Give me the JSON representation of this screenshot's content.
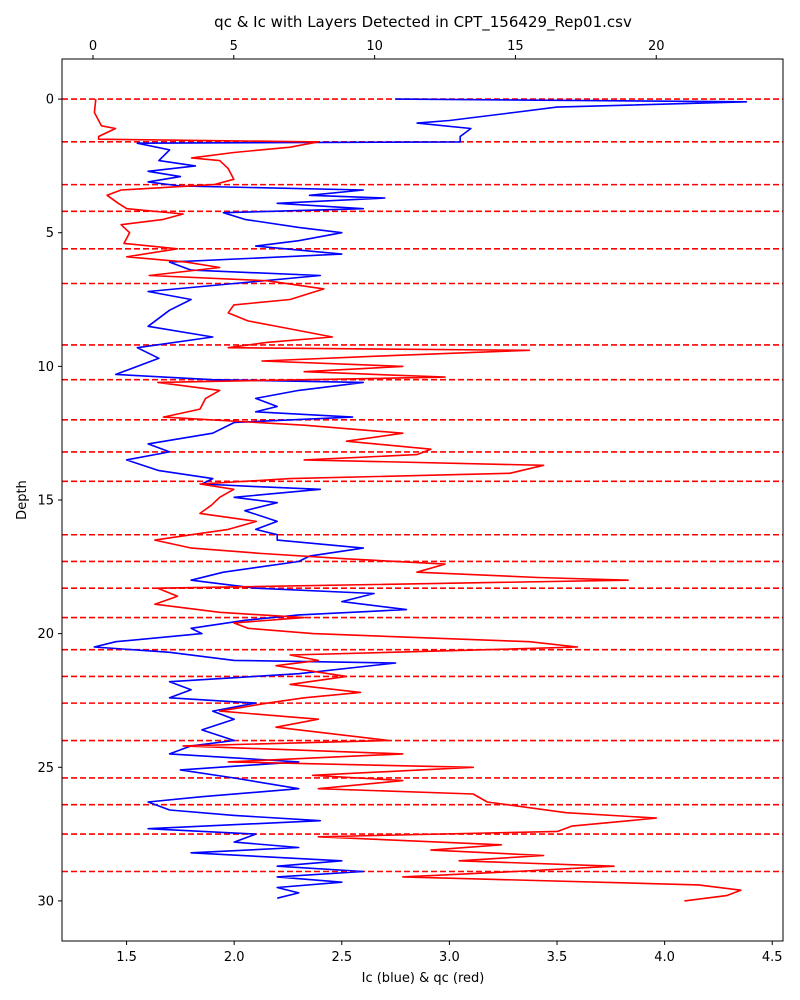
{
  "chart_data": {
    "type": "line",
    "title": "qc & Ic with Layers Detected in CPT_156429_Rep01.csv",
    "xlabel": "Ic (blue) & qc (red)",
    "ylabel": "Depth",
    "x_bottom_ticks": [
      "1.5",
      "2.0",
      "2.5",
      "3.0",
      "3.5",
      "4.0",
      "4.5"
    ],
    "x_top_ticks": [
      "0",
      "5",
      "10",
      "15",
      "20"
    ],
    "y_ticks": [
      "0",
      "5",
      "10",
      "15",
      "20",
      "25",
      "30"
    ],
    "xlim_bottom": [
      1.2,
      4.55
    ],
    "xlim_top": [
      -1.1,
      24.5
    ],
    "ylim": [
      31.5,
      -1.5
    ],
    "y_inverted": true,
    "grid": false,
    "layer_boundaries": [
      0.0,
      1.6,
      3.2,
      4.2,
      5.6,
      6.9,
      9.2,
      10.5,
      12.0,
      13.2,
      14.3,
      16.3,
      17.3,
      18.3,
      19.4,
      20.6,
      21.6,
      22.6,
      24.0,
      25.4,
      26.4,
      27.5,
      28.9
    ],
    "series": [
      {
        "axis": "bottom",
        "color": "#0000ff",
        "points": [
          [
            2.75,
            0.0
          ],
          [
            4.38,
            0.1
          ],
          [
            3.5,
            0.3
          ],
          [
            3.3,
            0.5
          ],
          [
            3.0,
            0.8
          ],
          [
            2.85,
            0.9
          ],
          [
            3.1,
            1.1
          ],
          [
            3.05,
            1.4
          ],
          [
            3.05,
            1.6
          ],
          [
            1.55,
            1.65
          ],
          [
            1.7,
            1.9
          ],
          [
            1.65,
            2.3
          ],
          [
            1.82,
            2.5
          ],
          [
            1.6,
            2.7
          ],
          [
            1.75,
            2.9
          ],
          [
            1.6,
            3.1
          ],
          [
            1.75,
            3.25
          ],
          [
            2.6,
            3.4
          ],
          [
            2.35,
            3.6
          ],
          [
            2.7,
            3.7
          ],
          [
            2.2,
            3.9
          ],
          [
            2.6,
            4.1
          ],
          [
            1.95,
            4.25
          ],
          [
            2.05,
            4.5
          ],
          [
            2.3,
            4.8
          ],
          [
            2.5,
            5.0
          ],
          [
            2.3,
            5.3
          ],
          [
            2.1,
            5.5
          ],
          [
            2.5,
            5.8
          ],
          [
            1.7,
            6.1
          ],
          [
            1.8,
            6.4
          ],
          [
            2.4,
            6.6
          ],
          [
            2.0,
            6.9
          ],
          [
            1.6,
            7.2
          ],
          [
            1.8,
            7.5
          ],
          [
            1.7,
            7.9
          ],
          [
            1.6,
            8.5
          ],
          [
            1.9,
            8.9
          ],
          [
            1.55,
            9.3
          ],
          [
            1.65,
            9.7
          ],
          [
            1.45,
            10.3
          ],
          [
            1.9,
            10.5
          ],
          [
            2.6,
            10.6
          ],
          [
            2.3,
            10.9
          ],
          [
            2.1,
            11.2
          ],
          [
            2.2,
            11.5
          ],
          [
            2.1,
            11.7
          ],
          [
            2.55,
            11.9
          ],
          [
            2.0,
            12.1
          ],
          [
            1.9,
            12.5
          ],
          [
            1.6,
            12.9
          ],
          [
            1.7,
            13.2
          ],
          [
            1.5,
            13.5
          ],
          [
            1.65,
            13.9
          ],
          [
            1.9,
            14.2
          ],
          [
            1.85,
            14.4
          ],
          [
            2.1,
            14.5
          ],
          [
            2.4,
            14.6
          ],
          [
            2.0,
            14.9
          ],
          [
            2.2,
            15.1
          ],
          [
            2.05,
            15.4
          ],
          [
            2.2,
            15.8
          ],
          [
            2.1,
            16.1
          ],
          [
            2.2,
            16.3
          ],
          [
            2.2,
            16.5
          ],
          [
            2.6,
            16.8
          ],
          [
            2.35,
            17.1
          ],
          [
            2.3,
            17.3
          ],
          [
            1.95,
            17.7
          ],
          [
            1.8,
            18.0
          ],
          [
            2.1,
            18.3
          ],
          [
            2.65,
            18.5
          ],
          [
            2.5,
            18.8
          ],
          [
            2.8,
            19.1
          ],
          [
            2.3,
            19.3
          ],
          [
            2.05,
            19.5
          ],
          [
            1.8,
            19.8
          ],
          [
            1.85,
            20.0
          ],
          [
            1.45,
            20.3
          ],
          [
            1.35,
            20.5
          ],
          [
            1.7,
            20.7
          ],
          [
            2.0,
            21.0
          ],
          [
            2.75,
            21.1
          ],
          [
            2.3,
            21.5
          ],
          [
            1.7,
            21.8
          ],
          [
            1.8,
            22.1
          ],
          [
            1.7,
            22.4
          ],
          [
            2.1,
            22.6
          ],
          [
            1.9,
            22.9
          ],
          [
            2.0,
            23.2
          ],
          [
            1.85,
            23.6
          ],
          [
            2.0,
            24.0
          ],
          [
            1.8,
            24.2
          ],
          [
            1.7,
            24.5
          ],
          [
            2.3,
            24.8
          ],
          [
            1.75,
            25.1
          ],
          [
            2.0,
            25.4
          ],
          [
            2.3,
            25.8
          ],
          [
            1.85,
            26.1
          ],
          [
            1.6,
            26.3
          ],
          [
            1.7,
            26.6
          ],
          [
            2.0,
            26.8
          ],
          [
            2.4,
            27.0
          ],
          [
            1.6,
            27.3
          ],
          [
            2.1,
            27.5
          ],
          [
            2.0,
            27.8
          ],
          [
            2.3,
            28.0
          ],
          [
            1.8,
            28.2
          ],
          [
            2.5,
            28.5
          ],
          [
            2.2,
            28.7
          ],
          [
            2.6,
            28.9
          ],
          [
            2.2,
            29.1
          ],
          [
            2.5,
            29.3
          ],
          [
            2.2,
            29.5
          ],
          [
            2.3,
            29.7
          ],
          [
            2.2,
            29.9
          ]
        ]
      },
      {
        "axis": "top",
        "color": "#ff0000",
        "points": [
          [
            0.1,
            0.0
          ],
          [
            0.05,
            0.5
          ],
          [
            0.3,
            1.0
          ],
          [
            0.8,
            1.1
          ],
          [
            0.2,
            1.4
          ],
          [
            0.2,
            1.5
          ],
          [
            8.0,
            1.6
          ],
          [
            7.0,
            1.8
          ],
          [
            5.0,
            2.0
          ],
          [
            3.5,
            2.2
          ],
          [
            4.5,
            2.3
          ],
          [
            4.8,
            2.6
          ],
          [
            5.0,
            3.0
          ],
          [
            4.3,
            3.2
          ],
          [
            1.0,
            3.4
          ],
          [
            0.5,
            3.6
          ],
          [
            0.9,
            3.9
          ],
          [
            1.2,
            4.1
          ],
          [
            3.2,
            4.3
          ],
          [
            2.5,
            4.5
          ],
          [
            1.0,
            4.7
          ],
          [
            1.3,
            5.0
          ],
          [
            1.1,
            5.4
          ],
          [
            3.0,
            5.6
          ],
          [
            1.2,
            5.9
          ],
          [
            3.3,
            6.1
          ],
          [
            4.5,
            6.3
          ],
          [
            2.0,
            6.6
          ],
          [
            6.2,
            6.8
          ],
          [
            8.2,
            7.1
          ],
          [
            7.0,
            7.5
          ],
          [
            5.0,
            7.7
          ],
          [
            4.8,
            8.0
          ],
          [
            5.5,
            8.3
          ],
          [
            7.0,
            8.6
          ],
          [
            8.5,
            8.9
          ],
          [
            6.2,
            9.1
          ],
          [
            4.8,
            9.3
          ],
          [
            15.5,
            9.4
          ],
          [
            10.5,
            9.6
          ],
          [
            6.0,
            9.8
          ],
          [
            11.0,
            10.0
          ],
          [
            7.5,
            10.2
          ],
          [
            12.5,
            10.4
          ],
          [
            2.3,
            10.6
          ],
          [
            4.5,
            10.9
          ],
          [
            4.0,
            11.2
          ],
          [
            3.8,
            11.6
          ],
          [
            2.5,
            11.9
          ],
          [
            7.5,
            12.2
          ],
          [
            11.0,
            12.5
          ],
          [
            9.0,
            12.8
          ],
          [
            12.0,
            13.1
          ],
          [
            11.5,
            13.3
          ],
          [
            7.5,
            13.5
          ],
          [
            16.0,
            13.7
          ],
          [
            14.8,
            14.0
          ],
          [
            7.0,
            14.2
          ],
          [
            3.8,
            14.4
          ],
          [
            5.0,
            14.6
          ],
          [
            4.5,
            14.9
          ],
          [
            4.2,
            15.2
          ],
          [
            3.8,
            15.5
          ],
          [
            5.8,
            15.8
          ],
          [
            4.8,
            16.1
          ],
          [
            3.5,
            16.3
          ],
          [
            2.2,
            16.5
          ],
          [
            3.5,
            16.8
          ],
          [
            6.0,
            17.0
          ],
          [
            9.0,
            17.2
          ],
          [
            12.5,
            17.4
          ],
          [
            11.5,
            17.7
          ],
          [
            15.8,
            17.9
          ],
          [
            19.0,
            18.0
          ],
          [
            2.3,
            18.3
          ],
          [
            3.0,
            18.6
          ],
          [
            2.2,
            18.9
          ],
          [
            4.5,
            19.2
          ],
          [
            7.5,
            19.4
          ],
          [
            5.0,
            19.6
          ],
          [
            5.5,
            19.8
          ],
          [
            7.8,
            20.0
          ],
          [
            15.5,
            20.3
          ],
          [
            17.2,
            20.5
          ],
          [
            14.0,
            20.6
          ],
          [
            7.0,
            20.8
          ],
          [
            8.0,
            21.0
          ],
          [
            6.5,
            21.2
          ],
          [
            9.0,
            21.6
          ],
          [
            7.0,
            21.9
          ],
          [
            9.5,
            22.2
          ],
          [
            7.5,
            22.4
          ],
          [
            6.2,
            22.6
          ],
          [
            4.5,
            22.9
          ],
          [
            8.0,
            23.2
          ],
          [
            6.5,
            23.5
          ],
          [
            10.5,
            24.0
          ],
          [
            3.2,
            24.2
          ],
          [
            11.0,
            24.5
          ],
          [
            4.8,
            24.8
          ],
          [
            13.5,
            25.0
          ],
          [
            7.8,
            25.3
          ],
          [
            11.0,
            25.5
          ],
          [
            8.0,
            25.8
          ],
          [
            13.5,
            26.0
          ],
          [
            14.0,
            26.3
          ],
          [
            16.8,
            26.7
          ],
          [
            20.0,
            26.9
          ],
          [
            17.0,
            27.2
          ],
          [
            16.5,
            27.4
          ],
          [
            8.0,
            27.6
          ],
          [
            14.5,
            27.9
          ],
          [
            12.0,
            28.1
          ],
          [
            16.0,
            28.3
          ],
          [
            13.0,
            28.5
          ],
          [
            18.5,
            28.7
          ],
          [
            15.0,
            28.9
          ],
          [
            11.0,
            29.1
          ],
          [
            21.5,
            29.4
          ],
          [
            23.0,
            29.6
          ],
          [
            22.5,
            29.8
          ],
          [
            21.0,
            30.0
          ]
        ]
      }
    ]
  }
}
